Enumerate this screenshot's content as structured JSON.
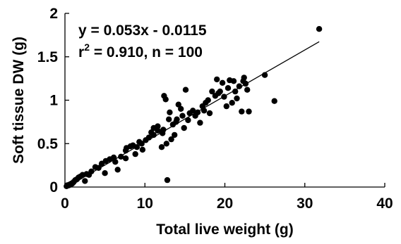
{
  "chart_data": {
    "type": "scatter",
    "title": "",
    "xlabel": "Total live weight (g)",
    "ylabel": "Soft tissue DW (g)",
    "xlim": [
      0,
      40
    ],
    "ylim": [
      0,
      2
    ],
    "xticks": [
      0,
      10,
      20,
      30,
      40
    ],
    "yticks": [
      0,
      0.5,
      1,
      1.5,
      2
    ],
    "xtick_labels": [
      "0",
      "10",
      "20",
      "30",
      "40"
    ],
    "ytick_labels": [
      "0",
      "0.5",
      "1",
      "1.5",
      "2"
    ],
    "grid": false,
    "legend": "none",
    "annotation": {
      "equation": "y = 0.053x - 0.0115",
      "r2_prefix": "r",
      "r2_sup": "2",
      "r2_rest": " = 0.910, n = 100"
    },
    "fit_line": {
      "slope": 0.053,
      "intercept": -0.0115,
      "x_range": [
        0.5,
        31.8
      ]
    },
    "marker_color": "#000000",
    "points": [
      [
        0.2,
        0.01
      ],
      [
        0.3,
        0.02
      ],
      [
        0.4,
        0.02
      ],
      [
        0.5,
        0.02
      ],
      [
        0.6,
        0.03
      ],
      [
        0.7,
        0.03
      ],
      [
        0.8,
        0.04
      ],
      [
        0.9,
        0.04
      ],
      [
        1.0,
        0.05
      ],
      [
        1.1,
        0.06
      ],
      [
        1.3,
        0.08
      ],
      [
        1.5,
        0.09
      ],
      [
        1.7,
        0.11
      ],
      [
        1.9,
        0.12
      ],
      [
        2.2,
        0.14
      ],
      [
        2.5,
        0.07
      ],
      [
        2.7,
        0.15
      ],
      [
        3.0,
        0.14
      ],
      [
        3.8,
        0.23
      ],
      [
        4.2,
        0.22
      ],
      [
        4.6,
        0.27
      ],
      [
        5.0,
        0.16
      ],
      [
        5.1,
        0.3
      ],
      [
        5.6,
        0.32
      ],
      [
        6.1,
        0.34
      ],
      [
        6.6,
        0.2
      ],
      [
        7.0,
        0.35
      ],
      [
        7.6,
        0.33
      ],
      [
        7.6,
        0.42
      ],
      [
        7.7,
        0.45
      ],
      [
        8.2,
        0.47
      ],
      [
        8.5,
        0.48
      ],
      [
        8.8,
        0.38
      ],
      [
        9.3,
        0.52
      ],
      [
        9.6,
        0.5
      ],
      [
        9.7,
        0.43
      ],
      [
        10.1,
        0.54
      ],
      [
        10.5,
        0.57
      ],
      [
        11.1,
        0.6
      ],
      [
        11.1,
        0.68
      ],
      [
        11.6,
        0.65
      ],
      [
        11.6,
        0.7
      ],
      [
        12.1,
        0.46
      ],
      [
        12.2,
        0.62
      ],
      [
        12.3,
        0.66
      ],
      [
        12.4,
        1.05
      ],
      [
        12.6,
        1.01
      ],
      [
        12.7,
        0.5
      ],
      [
        12.8,
        0.08
      ],
      [
        13.0,
        0.78
      ],
      [
        13.1,
        0.86
      ],
      [
        13.3,
        0.55
      ],
      [
        13.5,
        0.72
      ],
      [
        13.7,
        0.6
      ],
      [
        13.9,
        0.75
      ],
      [
        14.2,
        0.95
      ],
      [
        14.5,
        0.9
      ],
      [
        14.7,
        0.82
      ],
      [
        14.9,
        0.68
      ],
      [
        15.1,
        1.12
      ],
      [
        15.4,
        0.77
      ],
      [
        15.6,
        0.85
      ],
      [
        16.0,
        0.88
      ],
      [
        16.3,
        0.82
      ],
      [
        16.6,
        0.86
      ],
      [
        16.9,
        0.74
      ],
      [
        17.2,
        0.93
      ],
      [
        17.6,
        0.97
      ],
      [
        17.9,
        1.0
      ],
      [
        18.1,
        0.85
      ],
      [
        18.4,
        1.1
      ],
      [
        18.8,
        1.05
      ],
      [
        19.0,
        1.24
      ],
      [
        19.4,
        1.1
      ],
      [
        19.7,
        1.2
      ],
      [
        19.9,
        1.04
      ],
      [
        20.2,
        0.93
      ],
      [
        20.4,
        1.14
      ],
      [
        20.6,
        1.23
      ],
      [
        20.9,
        0.97
      ],
      [
        21.1,
        1.22
      ],
      [
        21.3,
        1.1
      ],
      [
        21.5,
        1.02
      ],
      [
        21.8,
        1.16
      ],
      [
        22.1,
        0.87
      ],
      [
        22.3,
        1.22
      ],
      [
        22.6,
        1.19
      ],
      [
        22.8,
        1.12
      ],
      [
        23.0,
        0.87
      ],
      [
        22.4,
        1.26
      ],
      [
        25.0,
        1.29
      ],
      [
        26.2,
        0.99
      ],
      [
        31.8,
        1.82
      ],
      [
        3.3,
        0.18
      ],
      [
        6.3,
        0.29
      ],
      [
        9.0,
        0.46
      ],
      [
        10.8,
        0.63
      ],
      [
        14.0,
        0.78
      ],
      [
        17.4,
        0.88
      ],
      [
        19.2,
        1.08
      ]
    ]
  }
}
